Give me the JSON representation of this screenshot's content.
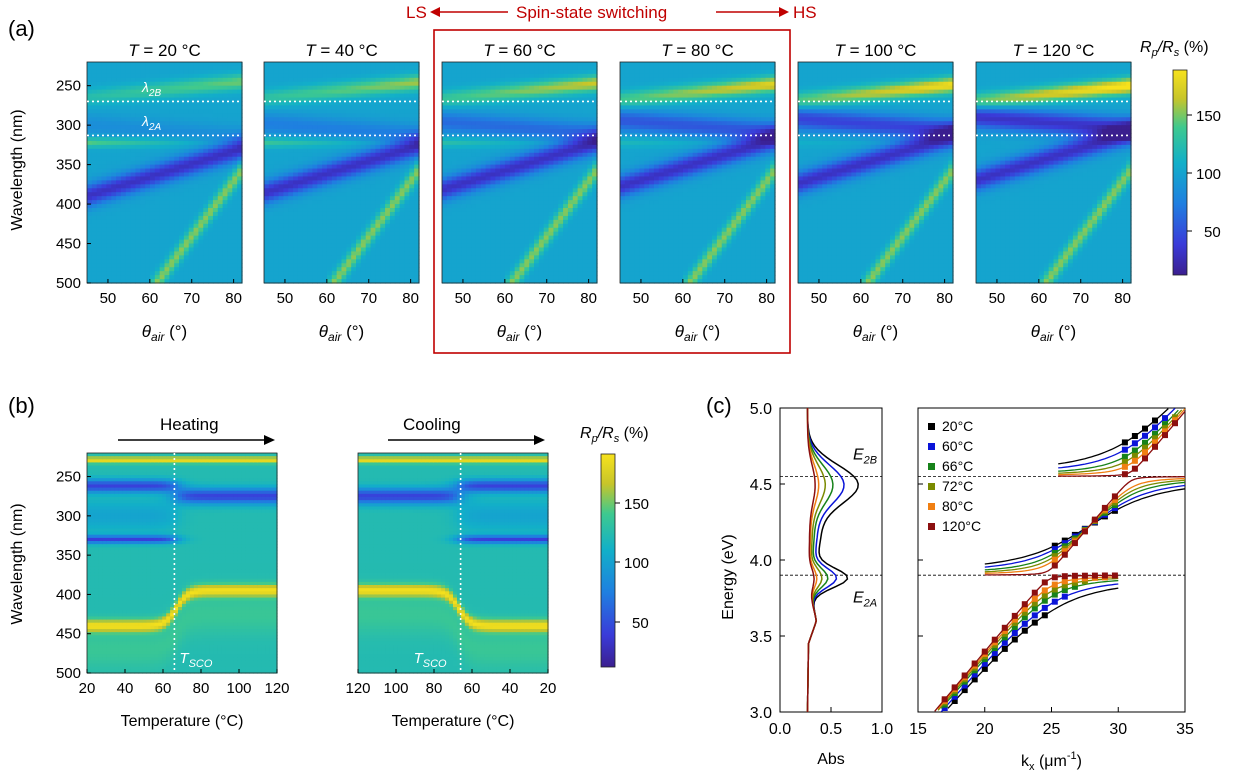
{
  "panel_a": {
    "label": "(a)",
    "header_left": "LS",
    "header_center": "Spin-state switching",
    "header_right": "HS",
    "ylabel": "Wavelength (nm)",
    "xlabel_theta": "θ",
    "xlabel_sub": "air",
    "xlabel_unit": " (°)",
    "colorbar_label_R": "R",
    "colorbar_label_p": "p",
    "colorbar_label_slash": "/R",
    "colorbar_label_s": "s",
    "colorbar_label_unit": " (%)",
    "colorbar_ticks": [
      "150",
      "100",
      "50"
    ],
    "y_ticks": [
      "250",
      "300",
      "350",
      "400",
      "450",
      "500"
    ],
    "x_ticks": [
      "50",
      "60",
      "70",
      "80"
    ],
    "lambda_2b": "λ",
    "lambda_2b_sub": "2B",
    "lambda_2a": "λ",
    "lambda_2a_sub": "2A",
    "panels": [
      {
        "T_label": "T",
        "eq": " = 20 °C",
        "temp": 20
      },
      {
        "T_label": "T",
        "eq": " = 40 °C",
        "temp": 40
      },
      {
        "T_label": "T",
        "eq": " = 60 °C",
        "temp": 60
      },
      {
        "T_label": "T",
        "eq": " = 80 °C",
        "temp": 80
      },
      {
        "T_label": "T",
        "eq": " = 100 °C",
        "temp": 100
      },
      {
        "T_label": "T",
        "eq": " = 120 °C",
        "temp": 120
      }
    ],
    "highlight_color": "#c00000"
  },
  "panel_b": {
    "label": "(b)",
    "heating": "Heating",
    "cooling": "Cooling",
    "ylabel": "Wavelength (nm)",
    "xlabel": "Temperature (°C)",
    "y_ticks": [
      "250",
      "300",
      "350",
      "400",
      "450",
      "500"
    ],
    "x_ticks_heat": [
      "20",
      "40",
      "60",
      "80",
      "100",
      "120"
    ],
    "x_ticks_cool": [
      "120",
      "100",
      "80",
      "60",
      "40",
      "20"
    ],
    "tsco": "T",
    "tsco_sub": "SCO",
    "colorbar_ticks": [
      "150",
      "100",
      "50"
    ]
  },
  "panel_c": {
    "label": "(c)",
    "ylabel": "Energy (eV)",
    "y_ticks": [
      "5.0",
      "4.5",
      "4.0",
      "3.5",
      "3.0"
    ],
    "abs_label": "Abs",
    "abs_ticks": [
      "0.0",
      "0.5",
      "1.0"
    ],
    "k_label_pre": "k",
    "k_label_sub": "x",
    "k_label_unit": " (μm",
    "k_label_sup": "-1",
    "k_label_close": ")",
    "k_ticks": [
      "15",
      "20",
      "25",
      "30",
      "35"
    ],
    "e2b": "E",
    "e2b_sub": "2B",
    "e2a": "E",
    "e2a_sub": "2A",
    "legend": [
      {
        "name": "20°C",
        "color": "#000000"
      },
      {
        "name": "60°C",
        "color": "#0a14d8"
      },
      {
        "name": "66°C",
        "color": "#17821a"
      },
      {
        "name": "72°C",
        "color": "#7a8a00"
      },
      {
        "name": "80°C",
        "color": "#f07f12"
      },
      {
        "name": "120°C",
        "color": "#8b0f0f"
      }
    ]
  }
}
